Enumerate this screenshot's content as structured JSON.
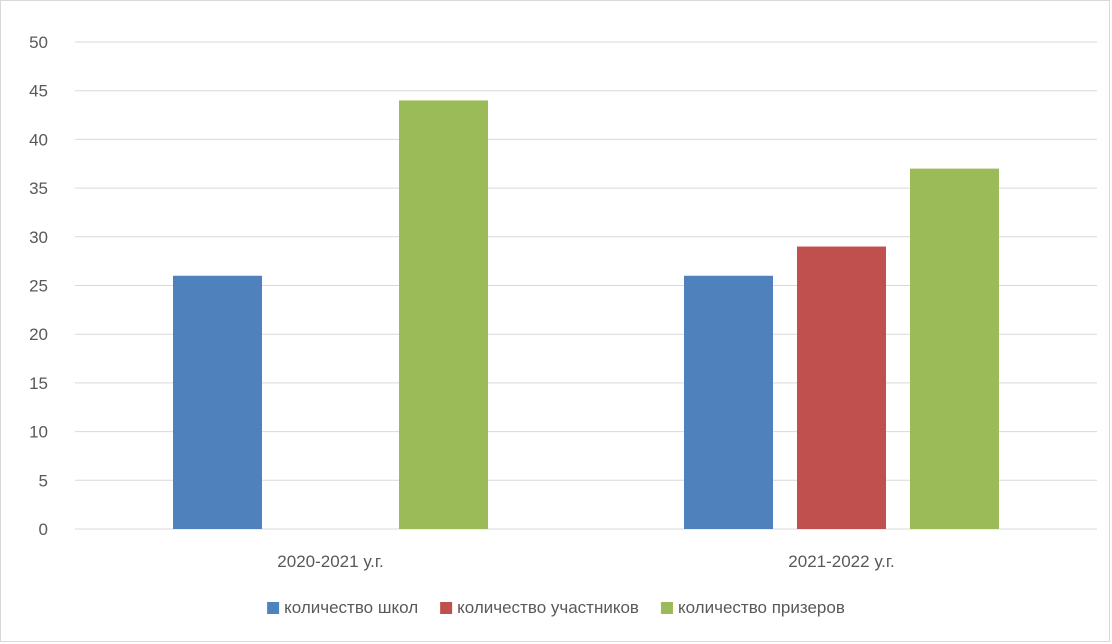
{
  "chart_data": {
    "type": "bar",
    "categories": [
      "2020-2021 у.г.",
      "2021-2022 у.г."
    ],
    "series": [
      {
        "name": "количество школ",
        "values": [
          26,
          26
        ],
        "color": "#4F81BD"
      },
      {
        "name": "количество участников",
        "values": [
          null,
          29
        ],
        "color": "#C0504D"
      },
      {
        "name": "количество призеров",
        "values": [
          44,
          37
        ],
        "color": "#9BBB59"
      }
    ],
    "ylim": [
      0,
      50
    ],
    "yticks": [
      "0",
      "5",
      "10",
      "15",
      "20",
      "25",
      "30",
      "35",
      "40",
      "45",
      "50"
    ],
    "grid": true,
    "legend_position": "bottom",
    "title": "",
    "xlabel": "",
    "ylabel": ""
  }
}
